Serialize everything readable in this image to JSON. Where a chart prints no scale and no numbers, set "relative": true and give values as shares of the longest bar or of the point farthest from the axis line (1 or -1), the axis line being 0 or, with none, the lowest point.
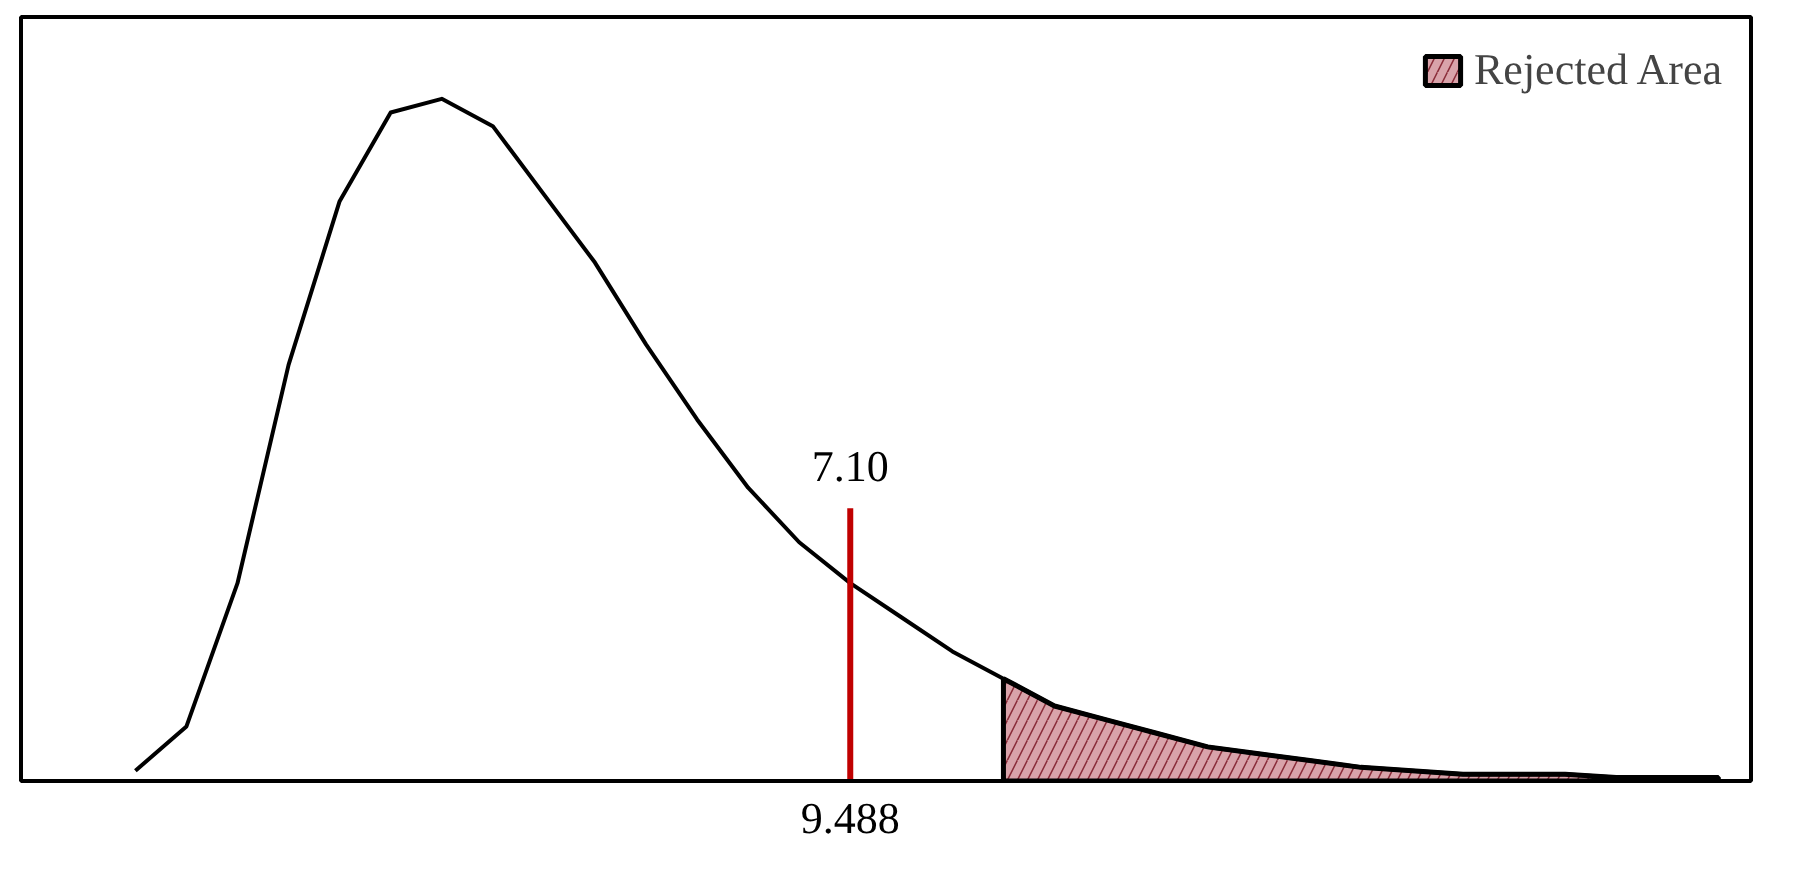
{
  "chart_data": {
    "type": "line",
    "relative": true,
    "categories": [
      null,
      null,
      null,
      null,
      null,
      null,
      null,
      null,
      null,
      null,
      null,
      null,
      null,
      null,
      null,
      null,
      null,
      null,
      null,
      null,
      null,
      null,
      null,
      null,
      null,
      null,
      null,
      null,
      null,
      null,
      null,
      null
    ],
    "series": [
      {
        "color": "#000000",
        "values": [
          0.015,
          0.08,
          0.29,
          0.61,
          0.85,
          0.98,
          1.0,
          0.96,
          0.86,
          0.76,
          0.64,
          0.53,
          0.43,
          0.35,
          0.29,
          0.24,
          0.19,
          0.15,
          0.11,
          0.09,
          0.07,
          0.05,
          0.04,
          0.03,
          0.02,
          0.015,
          0.01,
          0.01,
          0.01,
          0.005,
          0.005,
          0.005
        ]
      },
      {
        "type": "area",
        "name": "Rejected Area",
        "color": "#d9a3aa",
        "values": [
          null,
          null,
          null,
          null,
          null,
          null,
          null,
          null,
          null,
          null,
          null,
          null,
          null,
          null,
          null,
          null,
          null,
          0.15,
          0.11,
          0.09,
          0.07,
          0.05,
          0.04,
          0.03,
          0.02,
          0.015,
          0.01,
          0.01,
          0.01,
          0.005,
          0.005,
          0.005
        ]
      }
    ],
    "annotations": [
      "7.10",
      "9.488"
    ],
    "grid": false,
    "legend": "top right",
    "line_style": "solid",
    "marker": "none"
  }
}
